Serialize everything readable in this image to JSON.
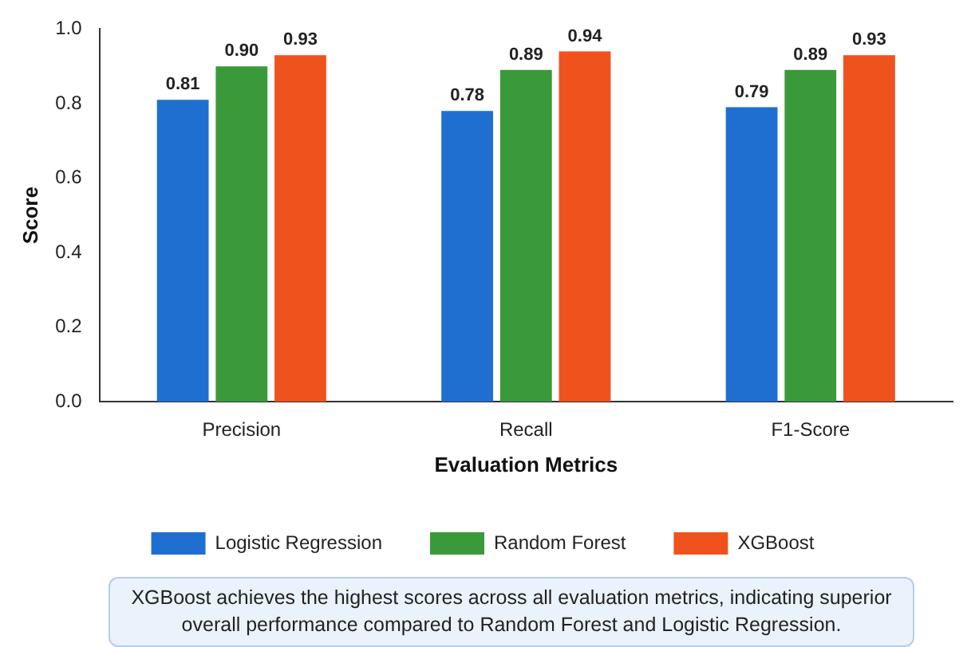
{
  "chart_data": {
    "type": "bar",
    "xlabel": "Evaluation Metrics",
    "ylabel": "Score",
    "categories": [
      "Precision",
      "Recall",
      "F1-Score"
    ],
    "series": [
      {
        "name": "Logistic Regression",
        "color": "#1f6fd1",
        "values": [
          0.81,
          0.78,
          0.79
        ],
        "value_labels": [
          "0.81",
          "0.78",
          "0.79"
        ]
      },
      {
        "name": "Random Forest",
        "color": "#3a9a3a",
        "values": [
          0.9,
          0.89,
          0.89
        ],
        "value_labels": [
          "0.90",
          "0.89",
          "0.89"
        ]
      },
      {
        "name": "XGBoost",
        "color": "#f0521d",
        "values": [
          0.93,
          0.94,
          0.93
        ],
        "value_labels": [
          "0.93",
          "0.94",
          "0.93"
        ]
      }
    ],
    "ylim": [
      0,
      1
    ],
    "yticks": [
      {
        "value": 0,
        "label": "0.0"
      },
      {
        "value": 0.2,
        "label": "0.2"
      },
      {
        "value": 0.4,
        "label": "0.4"
      },
      {
        "value": 0.6,
        "label": "0.6"
      },
      {
        "value": 0.8,
        "label": "0.8"
      },
      {
        "value": 1,
        "label": "1.0"
      }
    ],
    "grid": false,
    "legend": "bottom",
    "annotations": [
      "XGBoost achieves the highest scores across all evaluation metrics, indicating superior overall performance compared to Random Forest and Logistic Regression."
    ]
  }
}
